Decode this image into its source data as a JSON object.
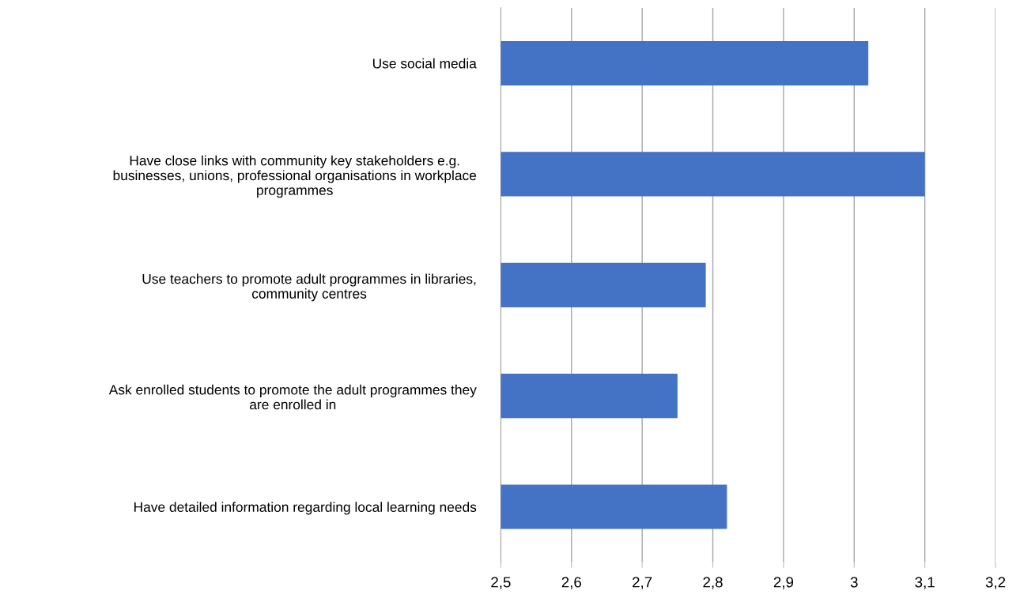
{
  "chart_data": {
    "type": "bar",
    "orientation": "horizontal",
    "categories": [
      "Use social media",
      "Have close links with community key stakeholders e.g.\nbusinesses, unions, professional organisations in workplace\nprogrammes",
      "Use teachers to promote adult programmes in libraries,\ncommunity centres",
      "Ask enrolled students to promote the adult programmes they\nare enrolled in",
      "Have detailed information regarding local learning needs"
    ],
    "values": [
      3.02,
      3.1,
      2.79,
      2.75,
      2.82
    ],
    "color": "#4472c4",
    "xlim": [
      2.5,
      3.2
    ],
    "xticks": [
      {
        "value": 2.5,
        "label": "2,5"
      },
      {
        "value": 2.6,
        "label": "2,6"
      },
      {
        "value": 2.7,
        "label": "2,7"
      },
      {
        "value": 2.8,
        "label": "2,8"
      },
      {
        "value": 2.9,
        "label": "2,9"
      },
      3,
      {
        "value": 3.1,
        "label": "3,1"
      },
      {
        "value": 3.2,
        "label": "3,2"
      }
    ],
    "grid": "x",
    "legend": false
  }
}
